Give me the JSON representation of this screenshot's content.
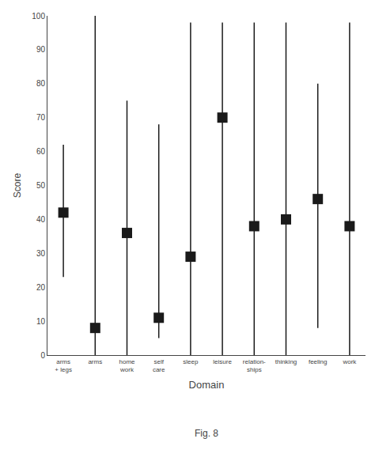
{
  "chart_data": {
    "type": "range",
    "categories": [
      "arms\n+ legs",
      "arms",
      "home\nwork",
      "self\ncare",
      "sleep",
      "leisure",
      "relation-\nships",
      "thinking",
      "feeling",
      "work"
    ],
    "values": [
      42,
      8,
      36,
      11,
      29,
      70,
      38,
      40,
      46,
      38
    ],
    "lower": [
      23,
      0,
      0,
      5,
      0,
      0,
      0,
      0,
      8,
      0
    ],
    "upper": [
      62,
      100,
      75,
      68,
      98,
      98,
      98,
      98,
      80,
      98
    ],
    "xlabel": "Domain",
    "ylabel": "Score",
    "caption": "Fig. 8",
    "ylim": [
      0,
      100
    ],
    "yticks": [
      0,
      10,
      20,
      30,
      40,
      50,
      60,
      70,
      80,
      90,
      100
    ],
    "color": "#1a1a1a",
    "marker": "square",
    "grid": false
  }
}
